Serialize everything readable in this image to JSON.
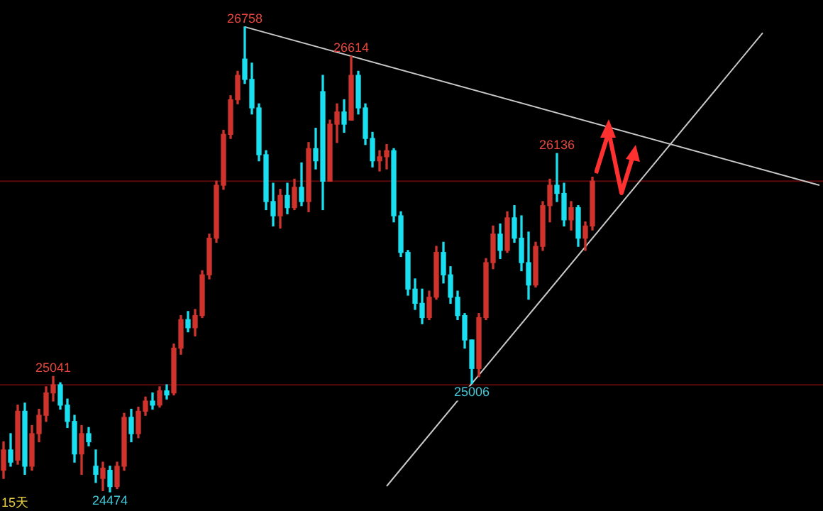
{
  "chart_data": {
    "type": "candlestick",
    "ylim": [
      24380,
      26890
    ],
    "tick_labels": false,
    "legend": false,
    "categories": [
      null,
      null,
      null,
      null,
      null,
      null,
      null,
      null,
      null,
      null,
      null,
      null,
      null,
      null,
      null,
      null,
      null,
      null,
      null,
      null,
      null,
      null,
      null,
      null,
      null,
      null,
      null,
      null,
      null,
      null,
      null,
      null,
      null,
      null,
      null,
      null,
      null,
      null,
      null,
      null,
      null,
      null,
      null,
      null,
      null,
      null,
      null,
      null,
      null,
      null,
      null,
      null,
      null,
      null,
      null,
      null,
      null,
      null,
      null,
      null,
      null,
      null,
      null,
      null,
      null,
      null,
      null,
      null,
      null,
      null,
      null,
      null,
      null,
      null,
      null,
      null,
      null,
      null,
      null,
      null,
      null,
      null,
      null,
      null,
      null,
      null,
      null,
      null,
      null,
      null,
      null,
      null,
      null,
      null,
      null,
      null,
      null,
      null,
      null,
      null,
      null,
      null,
      null,
      null,
      null,
      null,
      null,
      null,
      null,
      null,
      null,
      null,
      null,
      null,
      null,
      null
    ],
    "series": [
      {
        "type": "line",
        "color": "#c8c8c8",
        "values": [
          null,
          null,
          null,
          null,
          null,
          null,
          null,
          null,
          null,
          null,
          null,
          null,
          null,
          null,
          null,
          null,
          null,
          null,
          null,
          null,
          null,
          null,
          null,
          null,
          null,
          null,
          null,
          null,
          null,
          null,
          null,
          null,
          null,
          null,
          26758,
          null,
          null,
          null,
          null,
          null,
          null,
          null,
          null,
          null,
          null,
          null,
          null,
          null,
          null,
          null,
          null,
          null,
          null,
          null,
          null,
          null,
          null,
          null,
          null,
          null,
          null,
          null,
          null,
          null,
          null,
          null,
          null,
          null,
          null,
          null,
          null,
          null,
          null,
          null,
          null,
          null,
          null,
          null,
          null,
          null,
          null,
          null,
          null,
          null,
          null,
          null,
          null,
          null,
          null,
          null,
          null,
          null,
          null,
          null,
          null,
          null,
          null,
          null,
          null,
          null,
          null,
          null,
          null,
          null,
          null,
          null,
          null,
          null,
          null,
          null,
          null,
          null,
          null,
          null,
          null,
          25980
        ]
      },
      {
        "type": "line",
        "color": "#c8c8c8",
        "values": [
          null,
          null,
          null,
          null,
          null,
          null,
          null,
          null,
          null,
          null,
          null,
          null,
          null,
          null,
          null,
          null,
          null,
          null,
          null,
          null,
          null,
          null,
          null,
          null,
          null,
          null,
          null,
          null,
          null,
          null,
          null,
          null,
          null,
          null,
          null,
          null,
          null,
          null,
          null,
          null,
          null,
          null,
          null,
          null,
          null,
          null,
          null,
          null,
          null,
          null,
          null,
          null,
          null,
          null,
          24502,
          null,
          null,
          null,
          null,
          null,
          null,
          null,
          null,
          null,
          null,
          null,
          null,
          null,
          null,
          null,
          null,
          null,
          null,
          null,
          null,
          null,
          null,
          null,
          null,
          null,
          null,
          null,
          null,
          null,
          null,
          null,
          null,
          null,
          null,
          null,
          null,
          null,
          null,
          null,
          null,
          null,
          null,
          null,
          null,
          null,
          null,
          null,
          null,
          null,
          null,
          null,
          null,
          26728,
          null,
          null,
          null,
          null,
          null,
          null,
          null,
          null
        ]
      },
      {
        "colors": [
          "#d0322c",
          "#19e0f0",
          "#d0322c",
          "#19e0f0",
          "#d0322c",
          "#d0322c",
          "#d0322c",
          "#d0322c",
          "#19e0f0",
          "#19e0f0",
          "#19e0f0",
          "#d0322c",
          "#19e0f0",
          "#19e0f0",
          "#d0322c",
          "#19e0f0",
          "#d0322c",
          "#d0322c",
          "#19e0f0",
          "#d0322c",
          "#d0322c",
          "#19e0f0",
          "#d0322c",
          "#19e0f0",
          "#d0322c",
          "#d0322c",
          "#19e0f0",
          "#d0322c",
          "#d0322c",
          "#d0322c",
          "#d0322c",
          "#d0322c",
          "#d0322c",
          "#d0322c",
          "#19e0f0",
          "#19e0f0",
          "#19e0f0",
          "#19e0f0",
          "#19e0f0",
          "#d0322c",
          "#19e0f0",
          "#d0322c",
          "#19e0f0",
          "#d0322c",
          "#19e0f0",
          "#19e0f0",
          "#d0322c",
          "#d0322c",
          "#19e0f0",
          "#d0322c",
          "#19e0f0",
          "#19e0f0",
          "#19e0f0",
          "#d0322c",
          "#d0322c",
          "#19e0f0",
          "#19e0f0",
          "#19e0f0",
          "#19e0f0",
          "#19e0f0",
          "#d0322c",
          "#d0322c",
          "#19e0f0",
          "#19e0f0",
          "#19e0f0",
          "#19e0f0",
          "#19e0f0",
          "#d0322c",
          "#d0322c",
          "#d0322c",
          "#19e0f0",
          "#d0322c",
          "#19e0f0",
          "#19e0f0",
          "#19e0f0",
          "#d0322c",
          "#d0322c",
          "#d0322c",
          "#19e0f0",
          "#19e0f0",
          "#d0322c",
          "#19e0f0",
          "#d0322c",
          "#d0322c",
          null,
          null,
          null,
          null,
          null,
          null,
          null,
          null,
          null,
          null,
          null,
          null,
          null,
          null,
          null,
          null,
          null,
          null,
          null,
          null,
          null,
          null,
          null,
          null,
          null,
          null,
          null,
          null,
          null,
          null,
          null,
          null
        ],
        "ohlc": [
          [
            24580,
            24720,
            24540,
            24680
          ],
          [
            24680,
            24760,
            24600,
            24620
          ],
          [
            24630,
            24900,
            24610,
            24870
          ],
          [
            24870,
            24910,
            24560,
            24600
          ],
          [
            24600,
            24800,
            24580,
            24760
          ],
          [
            24760,
            24880,
            24720,
            24850
          ],
          [
            24850,
            24990,
            24820,
            24960
          ],
          [
            24960,
            25041,
            24920,
            25000
          ],
          [
            25000,
            25010,
            24880,
            24900
          ],
          [
            24900,
            24930,
            24790,
            24820
          ],
          [
            24820,
            24850,
            24620,
            24660
          ],
          [
            24660,
            24800,
            24560,
            24760
          ],
          [
            24760,
            24790,
            24700,
            24720
          ],
          [
            24600,
            24680,
            24520,
            24560
          ],
          [
            24540,
            24620,
            24480,
            24590
          ],
          [
            24580,
            24600,
            24474,
            24500
          ],
          [
            24500,
            24620,
            24490,
            24600
          ],
          [
            24600,
            24860,
            24580,
            24840
          ],
          [
            24840,
            24880,
            24720,
            24760
          ],
          [
            24760,
            24890,
            24740,
            24870
          ],
          [
            24870,
            24940,
            24850,
            24920
          ],
          [
            24920,
            24960,
            24880,
            24900
          ],
          [
            24900,
            24990,
            24890,
            24970
          ],
          [
            24970,
            25000,
            24930,
            24950
          ],
          [
            24960,
            25200,
            24950,
            25180
          ],
          [
            25180,
            25340,
            25150,
            25320
          ],
          [
            25320,
            25360,
            25260,
            25280
          ],
          [
            25280,
            25370,
            25240,
            25340
          ],
          [
            25340,
            25560,
            25330,
            25540
          ],
          [
            25540,
            25740,
            25520,
            25720
          ],
          [
            25720,
            26000,
            25700,
            25980
          ],
          [
            25980,
            26250,
            25960,
            26230
          ],
          [
            26230,
            26420,
            26210,
            26400
          ],
          [
            26400,
            26540,
            26380,
            26520
          ],
          [
            26600,
            26758,
            26480,
            26500
          ],
          [
            26500,
            26580,
            26330,
            26360
          ],
          [
            26360,
            26380,
            26100,
            26130
          ],
          [
            26130,
            26150,
            25860,
            25900
          ],
          [
            25900,
            25990,
            25780,
            25830
          ],
          [
            25830,
            25960,
            25770,
            25930
          ],
          [
            25930,
            25990,
            25840,
            25870
          ],
          [
            25870,
            26010,
            25860,
            25970
          ],
          [
            25970,
            26090,
            25880,
            25900
          ],
          [
            25900,
            26190,
            25850,
            26160
          ],
          [
            26160,
            26260,
            26060,
            26100
          ],
          [
            26440,
            26520,
            25860,
            26000
          ],
          [
            26000,
            26300,
            26000,
            26280
          ],
          [
            26280,
            26380,
            26190,
            26340
          ],
          [
            26340,
            26400,
            26240,
            26280
          ],
          [
            26300,
            26614,
            26300,
            26520
          ],
          [
            26520,
            26540,
            26330,
            26360
          ],
          [
            26360,
            26380,
            26180,
            26210
          ],
          [
            26210,
            26240,
            26070,
            26100
          ],
          [
            26100,
            26150,
            26050,
            26120
          ],
          [
            26120,
            26180,
            26060,
            26150
          ],
          [
            26150,
            26160,
            25800,
            25830
          ],
          [
            25830,
            25850,
            25630,
            25650
          ],
          [
            25650,
            25660,
            25440,
            25470
          ],
          [
            25470,
            25520,
            25370,
            25400
          ],
          [
            25400,
            25470,
            25300,
            25330
          ],
          [
            25330,
            25460,
            25320,
            25430
          ],
          [
            25430,
            25680,
            25420,
            25650
          ],
          [
            25650,
            25700,
            25500,
            25540
          ],
          [
            25540,
            25580,
            25400,
            25430
          ],
          [
            25430,
            25460,
            25320,
            25340
          ],
          [
            25340,
            25350,
            25180,
            25220
          ],
          [
            25220,
            25220,
            25006,
            25080
          ],
          [
            25080,
            25350,
            25040,
            25330
          ],
          [
            25330,
            25620,
            25320,
            25600
          ],
          [
            25600,
            25780,
            25570,
            25740
          ],
          [
            25740,
            25790,
            25620,
            25660
          ],
          [
            25660,
            25850,
            25650,
            25820
          ],
          [
            25820,
            25880,
            25700,
            25720
          ],
          [
            25720,
            25830,
            25560,
            25600
          ],
          [
            25600,
            25750,
            25420,
            25490
          ],
          [
            25490,
            25700,
            25480,
            25680
          ],
          [
            25680,
            25900,
            25660,
            25880
          ],
          [
            25880,
            26010,
            25800,
            25980
          ],
          [
            25980,
            26136,
            25900,
            25940
          ],
          [
            25940,
            25990,
            25780,
            25810
          ],
          [
            25810,
            25900,
            25760,
            25870
          ],
          [
            25870,
            25880,
            25680,
            25720
          ],
          [
            25720,
            25800,
            25660,
            25780
          ],
          [
            25780,
            26020,
            25760,
            26000
          ],
          null,
          null,
          null,
          null,
          null,
          null,
          null,
          null,
          null,
          null,
          null,
          null,
          null,
          null,
          null,
          null,
          null,
          null,
          null,
          null,
          null,
          null,
          null,
          null,
          null,
          null,
          null,
          null,
          null,
          null,
          null,
          null
        ]
      }
    ],
    "ref_lines": [
      {
        "axis": "y",
        "value": 26000,
        "color": "#5a0a0a"
      },
      {
        "axis": "y",
        "value": 25000,
        "color": "#5a0a0a"
      }
    ],
    "annotations": [
      {
        "text": "26758",
        "y": 26758
      },
      {
        "text": "26614",
        "y": 26614
      },
      {
        "text": "26136",
        "y": 26136
      },
      {
        "text": "25041",
        "y": 25041
      },
      {
        "text": "25006",
        "y": 25006
      },
      {
        "text": "24474",
        "y": 24474
      },
      "15天"
    ]
  }
}
